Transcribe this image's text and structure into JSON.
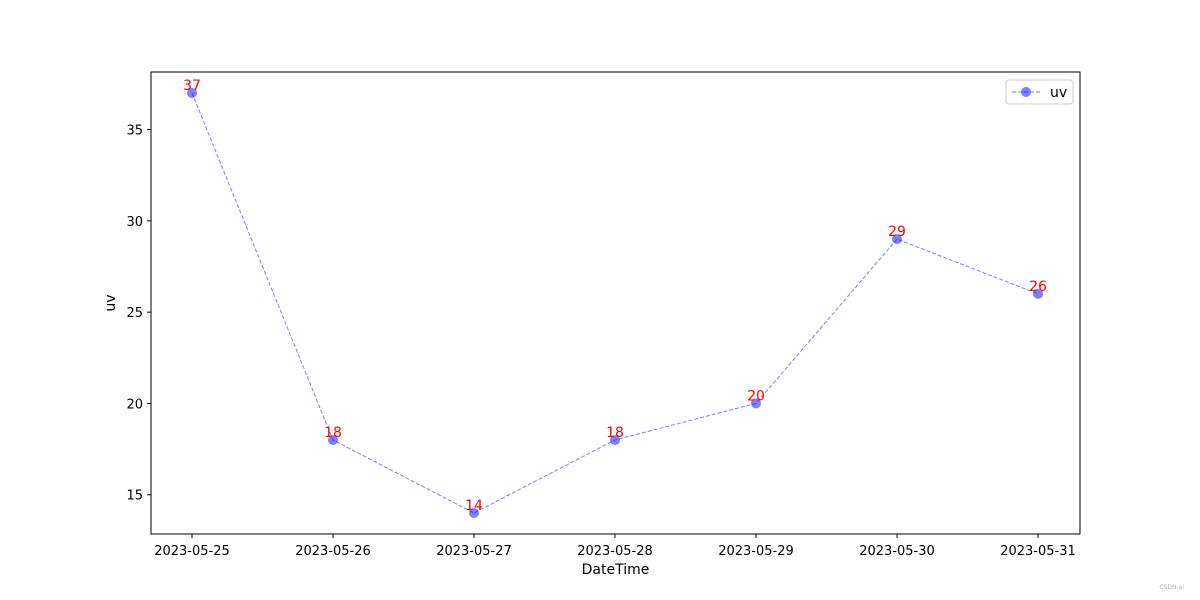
{
  "chart_data": {
    "type": "line",
    "x": [
      "2023-05-25",
      "2023-05-26",
      "2023-05-27",
      "2023-05-28",
      "2023-05-29",
      "2023-05-30",
      "2023-05-31"
    ],
    "series": [
      {
        "name": "uv",
        "values": [
          37,
          18,
          14,
          18,
          20,
          29,
          26
        ],
        "color": "#0000ff",
        "label_color": "#ff0000",
        "line_style": "dashed",
        "marker": "circle"
      }
    ],
    "xlabel": "DateTime",
    "ylabel": "uv",
    "ylim": [
      12.85,
      38.15
    ],
    "yticks": [
      15,
      20,
      25,
      30,
      35
    ],
    "grid": false,
    "legend": "top-right"
  },
  "watermark": "CSDN-ai"
}
